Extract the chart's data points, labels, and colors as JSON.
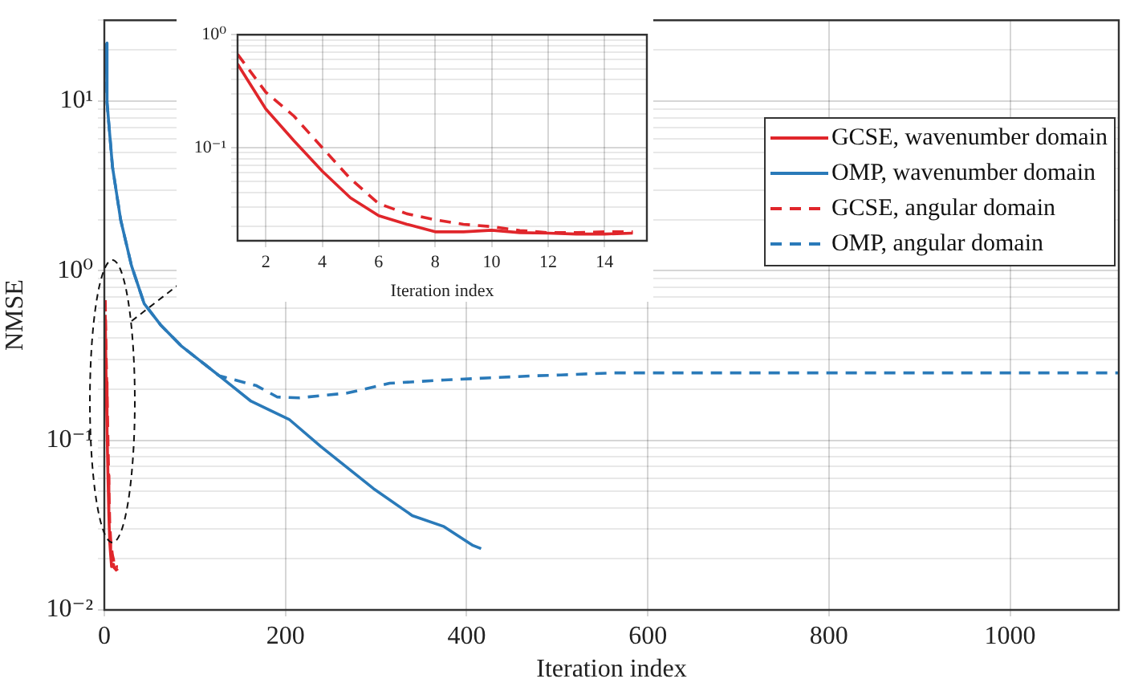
{
  "chart_data": [
    {
      "type": "line",
      "xlabel": "Iteration index",
      "ylabel": "NMSE",
      "log": "y",
      "grid": true,
      "legend": "top right",
      "xlim": [
        0,
        1120
      ],
      "ylim": [
        0.01,
        30
      ],
      "xticks": [
        0,
        200,
        400,
        600,
        800,
        1000
      ],
      "yticks": [
        {
          "value": 0.01,
          "label": "10⁻²"
        },
        {
          "value": 0.02,
          "label": null
        },
        {
          "value": 0.03,
          "label": null
        },
        {
          "value": 0.04,
          "label": null
        },
        {
          "value": 0.05,
          "label": null
        },
        {
          "value": 0.06,
          "label": null
        },
        {
          "value": 0.07,
          "label": null
        },
        {
          "value": 0.08,
          "label": null
        },
        {
          "value": 0.09,
          "label": null
        },
        {
          "value": 0.1,
          "label": "10⁻¹"
        },
        {
          "value": 0.2,
          "label": null
        },
        {
          "value": 0.3,
          "label": null
        },
        {
          "value": 0.4,
          "label": null
        },
        {
          "value": 0.5,
          "label": null
        },
        {
          "value": 0.6,
          "label": null
        },
        {
          "value": 0.7,
          "label": null
        },
        {
          "value": 0.8,
          "label": null
        },
        {
          "value": 0.9,
          "label": null
        },
        {
          "value": 1,
          "label": "10⁰"
        },
        {
          "value": 2,
          "label": null
        },
        {
          "value": 3,
          "label": null
        },
        {
          "value": 4,
          "label": null
        },
        {
          "value": 5,
          "label": null
        },
        {
          "value": 6,
          "label": null
        },
        {
          "value": 7,
          "label": null
        },
        {
          "value": 8,
          "label": null
        },
        {
          "value": 9,
          "label": null
        },
        {
          "value": 10,
          "label": "10¹"
        },
        {
          "value": 20,
          "label": null
        },
        {
          "value": 30,
          "label": null
        }
      ],
      "series": [
        {
          "name": "GCSE, wavenumber domain",
          "color": "#e0262b",
          "line_style": "solid",
          "x": [
            1,
            2,
            3,
            4,
            5,
            6,
            7,
            8,
            9,
            10,
            11,
            12,
            13,
            14,
            15
          ],
          "values": [
            0.55,
            0.22,
            0.115,
            0.062,
            0.036,
            0.025,
            0.021,
            0.018,
            0.018,
            0.0186,
            0.0177,
            0.0175,
            0.0172,
            0.0172,
            0.0175
          ]
        },
        {
          "name": "OMP, wavenumber domain",
          "color": "#2a7ab9",
          "line_style": "solid",
          "x": [
            2,
            3,
            9,
            18,
            30,
            44,
            62,
            85,
            127,
            162,
            204,
            239,
            297,
            340,
            375,
            407,
            416
          ],
          "values": [
            22,
            9.8,
            4.1,
            2.0,
            1.07,
            0.64,
            0.48,
            0.36,
            0.24,
            0.17,
            0.133,
            0.092,
            0.052,
            0.036,
            0.031,
            0.024,
            0.023
          ]
        },
        {
          "name": "GCSE, angular domain",
          "color": "#e0262b",
          "line_style": "dashed",
          "x": [
            1,
            2,
            3,
            4,
            5,
            6,
            7,
            8,
            9,
            10,
            11,
            12,
            13,
            14,
            15
          ],
          "values": [
            0.67,
            0.31,
            0.19,
            0.1,
            0.053,
            0.032,
            0.026,
            0.023,
            0.021,
            0.02,
            0.0185,
            0.0177,
            0.0177,
            0.018,
            0.018
          ]
        },
        {
          "name": "OMP, angular domain",
          "color": "#2a7ab9",
          "line_style": "dashed",
          "x": [
            2,
            3,
            9,
            18,
            30,
            44,
            62,
            85,
            127,
            168,
            191,
            215,
            268,
            315,
            375,
            474,
            504,
            563,
            700,
            900,
            1120
          ],
          "values": [
            22,
            9.8,
            4.1,
            2.0,
            1.07,
            0.64,
            0.48,
            0.36,
            0.24,
            0.21,
            0.18,
            0.178,
            0.19,
            0.217,
            0.227,
            0.24,
            0.243,
            0.25,
            0.25,
            0.25,
            0.25
          ]
        }
      ]
    },
    {
      "type": "line",
      "xlabel": "Iteration index",
      "log": "y",
      "grid": true,
      "xlim": [
        1,
        15.5
      ],
      "ylim": [
        0.015,
        1
      ],
      "xticks": [
        2,
        4,
        6,
        8,
        10,
        12,
        14
      ],
      "yticks": [
        {
          "value": 0.02,
          "label": null
        },
        {
          "value": 0.03,
          "label": null
        },
        {
          "value": 0.04,
          "label": null
        },
        {
          "value": 0.05,
          "label": null
        },
        {
          "value": 0.06,
          "label": null
        },
        {
          "value": 0.07,
          "label": null
        },
        {
          "value": 0.08,
          "label": null
        },
        {
          "value": 0.09,
          "label": null
        },
        {
          "value": 0.1,
          "label": "10⁻¹"
        },
        {
          "value": 0.2,
          "label": null
        },
        {
          "value": 0.3,
          "label": null
        },
        {
          "value": 0.4,
          "label": null
        },
        {
          "value": 0.5,
          "label": null
        },
        {
          "value": 0.6,
          "label": null
        },
        {
          "value": 0.7,
          "label": null
        },
        {
          "value": 0.8,
          "label": null
        },
        {
          "value": 0.9,
          "label": null
        },
        {
          "value": 1,
          "label": "10⁰"
        }
      ],
      "series": [
        {
          "color": "#e0262b",
          "line_style": "solid",
          "x": [
            1,
            2,
            3,
            4,
            5,
            6,
            7,
            8,
            9,
            10,
            11,
            12,
            13,
            14,
            15
          ],
          "values": [
            0.55,
            0.22,
            0.115,
            0.062,
            0.036,
            0.025,
            0.021,
            0.018,
            0.018,
            0.0186,
            0.0177,
            0.0175,
            0.0172,
            0.0172,
            0.0175
          ]
        },
        {
          "color": "#e0262b",
          "line_style": "dashed",
          "x": [
            1,
            2,
            3,
            4,
            5,
            6,
            7,
            8,
            9,
            10,
            11,
            12,
            13,
            14,
            15
          ],
          "values": [
            0.67,
            0.31,
            0.19,
            0.1,
            0.053,
            0.032,
            0.026,
            0.023,
            0.021,
            0.02,
            0.0185,
            0.0177,
            0.0177,
            0.018,
            0.018
          ]
        }
      ]
    }
  ]
}
